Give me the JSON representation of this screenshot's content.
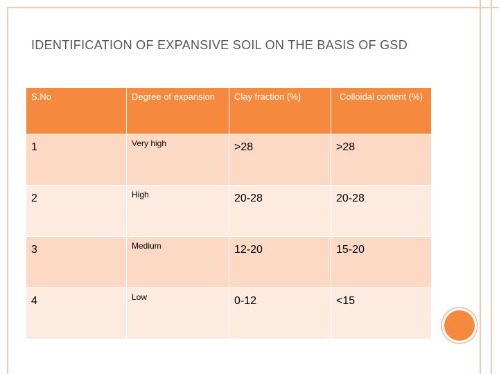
{
  "title": "IDENTIFICATION OF EXPANSIVE SOIL ON THE BASIS OF GSD",
  "table": {
    "header": [
      "S.No",
      "Degree of expansion",
      "Clay fraction (%)",
      "Colloidal content (%)"
    ],
    "rows": [
      [
        "1",
        "Very high",
        ">28",
        ">28"
      ],
      [
        "2",
        "High",
        "20-28",
        "20-28"
      ],
      [
        "3",
        "Medium",
        "12-20",
        "15-20"
      ],
      [
        "4",
        "Low",
        "0-12",
        "<15"
      ]
    ]
  }
}
